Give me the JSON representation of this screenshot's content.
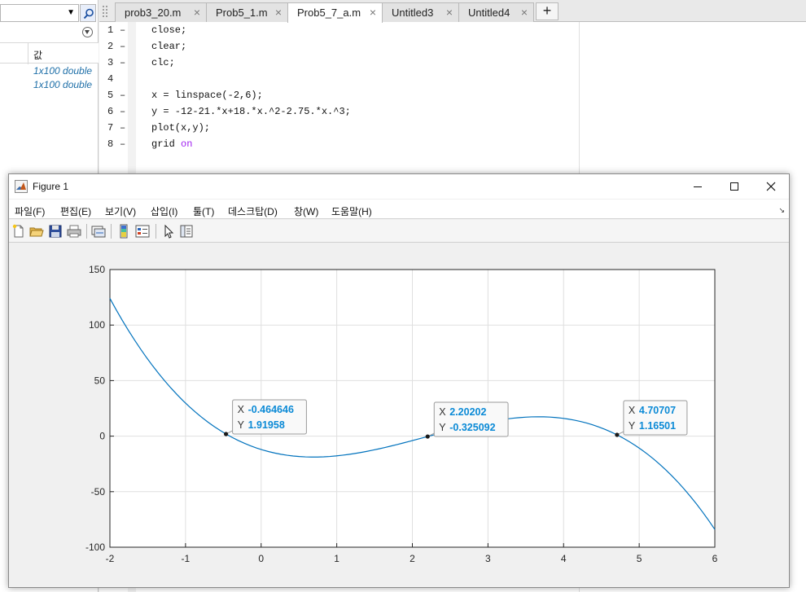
{
  "workspace": {
    "column_header": "값",
    "rows": [
      "1x100 double",
      "1x100 double"
    ]
  },
  "editor": {
    "tabs": [
      {
        "label": "prob3_20.m",
        "active": false
      },
      {
        "label": "Prob5_1.m",
        "active": false
      },
      {
        "label": "Prob5_7_a.m",
        "active": true
      },
      {
        "label": "Untitled3",
        "active": false
      },
      {
        "label": "Untitled4",
        "active": false
      }
    ],
    "add_tab_label": "+",
    "close_glyph": "×",
    "breakpoint_marker": "–",
    "lines": [
      {
        "num": "1",
        "code": "close;"
      },
      {
        "num": "2",
        "code": "clear;"
      },
      {
        "num": "3",
        "code": "clc;"
      },
      {
        "num": "4",
        "code": ""
      },
      {
        "num": "5",
        "code": "x = linspace(-2,6);"
      },
      {
        "num": "6",
        "code": "y = -12-21.*x+18.*x.^2-2.75.*x.^3;"
      },
      {
        "num": "7",
        "code": "plot(x,y);"
      },
      {
        "num": "8",
        "code": "grid ",
        "keyword": "on"
      }
    ]
  },
  "figure": {
    "title": "Figure 1",
    "menu": [
      "파일(F)",
      "편집(E)",
      "보기(V)",
      "삽입(I)",
      "툴(T)",
      "데스크탑(D)",
      "창(W)",
      "도움말(H)"
    ],
    "menu_corner": "↘",
    "toolbar_icons": [
      "new-figure-icon",
      "open-file-icon",
      "save-icon",
      "print-icon",
      "link-plot-icon",
      "colorbar-icon",
      "legend-icon",
      "edit-plot-pointer-icon",
      "property-inspector-icon"
    ],
    "colors": {
      "line": "#0072bd",
      "datatip_value": "#0b8ad6",
      "axes_bg": "#ffffff",
      "grid": "#dfdfdf"
    }
  },
  "chart_data": {
    "type": "line",
    "function": "y = -12-21.*x+18.*x.^2-2.75.*x.^3",
    "x_range": [
      -2,
      6
    ],
    "n_points": 100,
    "xlim": [
      -2,
      6
    ],
    "ylim": [
      -100,
      150
    ],
    "xticks": [
      "-2",
      "-1",
      "0",
      "1",
      "2",
      "3",
      "4",
      "5",
      "6"
    ],
    "yticks": [
      "150",
      "100",
      "50",
      "0",
      "-50",
      "-100"
    ],
    "grid": true,
    "datatips": [
      {
        "x_label": "X",
        "y_label": "Y",
        "x": "-0.464646",
        "y": "1.91958",
        "xv": -0.464646,
        "yv": 1.91958
      },
      {
        "x_label": "X",
        "y_label": "Y",
        "x": "2.20202",
        "y": "-0.325092",
        "xv": 2.20202,
        "yv": -0.325092
      },
      {
        "x_label": "X",
        "y_label": "Y",
        "x": "4.70707",
        "y": "1.16501",
        "xv": 4.70707,
        "yv": 1.16501
      }
    ]
  }
}
